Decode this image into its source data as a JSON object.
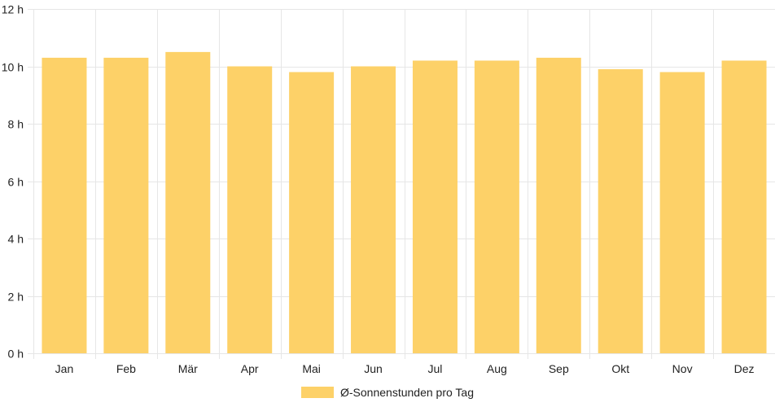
{
  "chart_data": {
    "type": "bar",
    "categories": [
      "Jan",
      "Feb",
      "Mär",
      "Apr",
      "Mai",
      "Jun",
      "Jul",
      "Aug",
      "Sep",
      "Okt",
      "Nov",
      "Dez"
    ],
    "series": [
      {
        "name": "Ø-Sonnenstunden pro Tag",
        "values": [
          10.3,
          10.3,
          10.5,
          10.0,
          9.8,
          10.0,
          10.2,
          10.2,
          10.3,
          9.9,
          9.8,
          10.2
        ],
        "color": "#fdd168"
      }
    ],
    "ylim": [
      0,
      12
    ],
    "yticks": [
      0,
      2,
      4,
      6,
      8,
      10,
      12
    ],
    "ytick_labels": [
      "0 h",
      "2 h",
      "4 h",
      "6 h",
      "8 h",
      "10 h",
      "12 h"
    ],
    "grid": true,
    "legend_position": "bottom-center",
    "colors": {
      "bar": "#fdd168",
      "grid": "#e6e6e6",
      "text": "#222222"
    }
  }
}
